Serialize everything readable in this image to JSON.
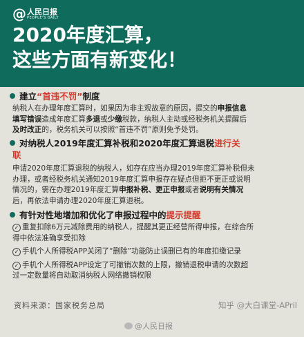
{
  "logo": {
    "at": "@",
    "name": "人民日报",
    "subtitle": "PEOPLE'S DAILY"
  },
  "title": {
    "line1": "2020年度汇算，",
    "line2": "这些方面有新变化！"
  },
  "section1": {
    "heading_pre": "建立",
    "heading_red": "“首违不罚”",
    "heading_post": "制度",
    "paragraph": {
      "l1_a": "纳税人在办理年度汇算时，如果因为非主观故意的原因，提交的",
      "l1_b": "申报信息",
      "l2_a": "填写错误",
      "l2_b": "造成年度汇算",
      "l2_c": "多退",
      "l2_d": "或",
      "l2_e": "少缴",
      "l2_f": "税款，纳税人主动或经税务机关提醒后",
      "l3_a": "及时改正",
      "l3_b": "的，税务机关可以按照“首违不罚”原则免予处罚。"
    }
  },
  "section2": {
    "heading_main": "对纳税人2019年度汇算补税和2020年度汇算退税",
    "heading_red": "进行关",
    "heading_red2": "联",
    "paragraph": {
      "l1": "申请2020年度汇算退税的纳税人，如存在应当办理2019年度汇算补税但未",
      "l2": "办理，或者经税务机关通知2019年度汇算申报存在疑点但拒不更正或说明",
      "l3_a": "情况的，需在办理2019年度汇算",
      "l3_b": "申报补税、更正申报",
      "l3_c": "或者",
      "l3_d": "说明有关情况",
      "l4": "后，再依法申请办理2020年度汇算退税。"
    }
  },
  "section3": {
    "heading_main": "有针对性地增加和优化了申报过程中的",
    "heading_red": "提示提醒",
    "items": [
      {
        "l1": "重复扣除6万元减除费用的纳税人，提醒其更正经营所得申报，在综合所",
        "l2": "得中依法准确享受扣除"
      },
      {
        "l1": "手机个人所得税APP关闭了“删除”功能防止误删已有的年度扣缴记录"
      },
      {
        "l1": "手机个人所得税APP设定了可撤销次数的上限，撤销退税申请的次数超",
        "l2": "过一定数量将自动取消纳税人网络撤销权限"
      }
    ],
    "check_glyph": "✓"
  },
  "source": "资料来源：国家税务总局",
  "watermark_zhihu": "知乎 @大白课堂-APril",
  "watermark_weibo": "@人民日报",
  "colors": {
    "header": "#0f6b5b",
    "accent_red": "#d23a2c",
    "background": "#e3e3db"
  }
}
